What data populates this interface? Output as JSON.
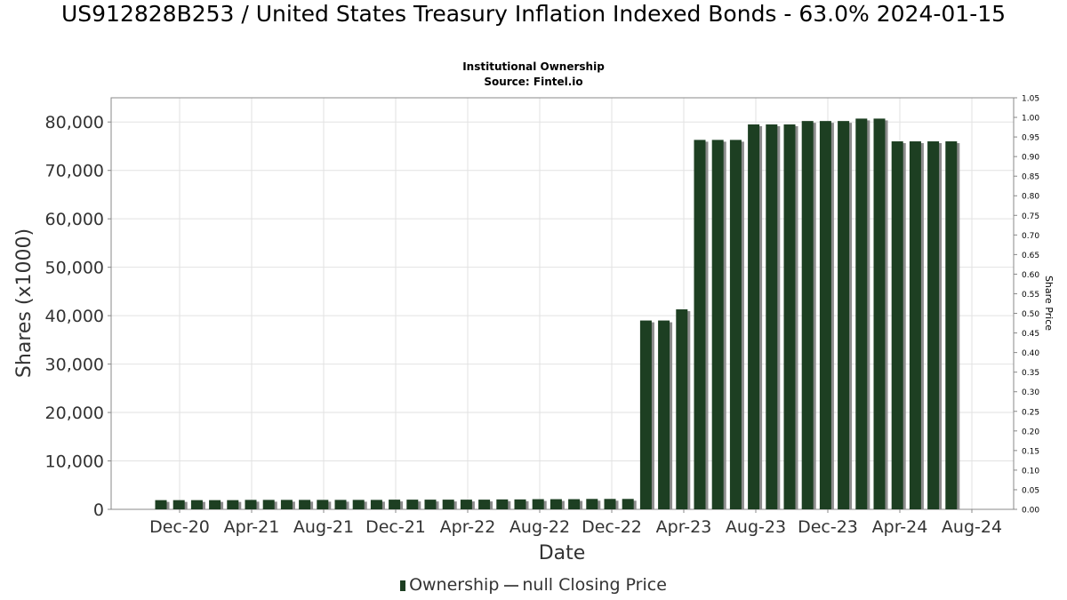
{
  "chart_data": {
    "type": "bar",
    "title": "US912828B253 / United States Treasury Inflation Indexed Bonds - 63.0% 2024-01-15",
    "subtitle": "Institutional Ownership",
    "source": "Source: Fintel.io",
    "xlabel": "Date",
    "ylabel": "Shares (x1000)",
    "y2label": "Share Price",
    "ylim": [
      0,
      85000
    ],
    "y2lim": [
      0,
      1.05
    ],
    "yticks": [
      "0",
      "10,000",
      "20,000",
      "30,000",
      "40,000",
      "50,000",
      "60,000",
      "70,000",
      "80,000"
    ],
    "y2ticks": [
      "0.00",
      "0.05",
      "0.10",
      "0.15",
      "0.20",
      "0.25",
      "0.30",
      "0.35",
      "0.40",
      "0.45",
      "0.50",
      "0.55",
      "0.60",
      "0.65",
      "0.70",
      "0.75",
      "0.80",
      "0.85",
      "0.90",
      "0.95",
      "1.00",
      "1.05"
    ],
    "xticks": [
      "Dec-20",
      "Apr-21",
      "Aug-21",
      "Dec-21",
      "Apr-22",
      "Aug-22",
      "Dec-22",
      "Apr-23",
      "Aug-23",
      "Dec-23",
      "Apr-24",
      "Aug-24"
    ],
    "grid": true,
    "legend_placement": "bottom",
    "series": [
      {
        "name": "Ownership",
        "color": "#1d3f22",
        "values": [
          1900,
          1900,
          1900,
          1900,
          1900,
          1950,
          1950,
          1950,
          1950,
          1950,
          1950,
          1950,
          1950,
          2000,
          2000,
          2000,
          2000,
          2000,
          2000,
          2050,
          2050,
          2100,
          2100,
          2100,
          2150,
          2150,
          2150,
          39000,
          39000,
          41300,
          76300,
          76300,
          76300,
          79500,
          79500,
          79500,
          80200,
          80200,
          80200,
          80700,
          80700,
          76000,
          76000,
          76000,
          76000
        ]
      },
      {
        "name": "null Closing Price",
        "color": "#555555",
        "values": []
      }
    ]
  },
  "legend": {
    "ownership_label": "Ownership",
    "price_label": "null Closing Price"
  }
}
